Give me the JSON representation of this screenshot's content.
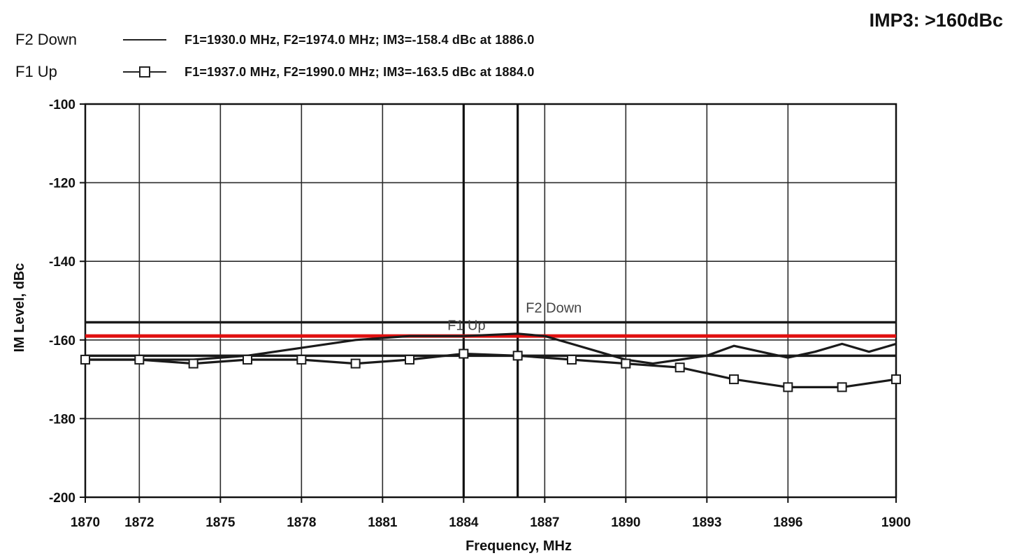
{
  "badge": "IMP3: >160dBc",
  "legend": [
    {
      "name": "F2 Down",
      "desc": "F1=1930.0 MHz, F2=1974.0 MHz;  IM3=-158.4 dBc at 1886.0"
    },
    {
      "name": "F1 Up",
      "desc": "F1=1937.0 MHz, F2=1990.0 MHz;  IM3=-163.5 dBc at 1884.0"
    }
  ],
  "chart_data": {
    "type": "line",
    "xlabel": "Frequency, MHz",
    "ylabel": "IM Level, dBc",
    "xlim": [
      1870,
      1900
    ],
    "ylim": [
      -200,
      -100
    ],
    "x_ticks": [
      1870,
      1872,
      1875,
      1878,
      1881,
      1884,
      1887,
      1890,
      1893,
      1896,
      1900
    ],
    "y_ticks": [
      -100,
      -120,
      -140,
      -160,
      -180,
      -200
    ],
    "grid": true,
    "series": [
      {
        "name": "F2 Down",
        "marker": "none",
        "x": [
          1870,
          1872,
          1874,
          1876,
          1878,
          1880,
          1882,
          1884,
          1886,
          1887,
          1888,
          1889,
          1890,
          1891,
          1892,
          1893,
          1894,
          1895,
          1896,
          1897,
          1898,
          1899,
          1900
        ],
        "y": [
          -165,
          -165,
          -165,
          -164,
          -162,
          -160,
          -159,
          -159,
          -158.4,
          -159,
          -161,
          -163,
          -165,
          -166,
          -165,
          -164,
          -161.5,
          -163,
          -164.5,
          -163,
          -161,
          -163,
          -161
        ]
      },
      {
        "name": "F1 Up",
        "marker": "square",
        "x": [
          1870,
          1872,
          1874,
          1876,
          1878,
          1880,
          1882,
          1884,
          1886,
          1888,
          1890,
          1892,
          1894,
          1896,
          1898,
          1900
        ],
        "y": [
          -165,
          -165,
          -166,
          -165,
          -165,
          -166,
          -165,
          -163.5,
          -164,
          -165,
          -166,
          -167,
          -170,
          -172,
          -172,
          -170
        ]
      }
    ],
    "annotations": [
      {
        "text": "F2 Down",
        "x": 1886.3,
        "y": -153
      },
      {
        "text": "F1 Up",
        "x": 1883.4,
        "y": -157.5
      }
    ],
    "reference_lines": [
      {
        "y": -155.5,
        "color": "#1a1a1a"
      },
      {
        "y": -159,
        "color": "#e01010"
      },
      {
        "y": -164,
        "color": "#1a1a1a"
      }
    ],
    "vertical_lines": [
      1884,
      1886
    ]
  }
}
